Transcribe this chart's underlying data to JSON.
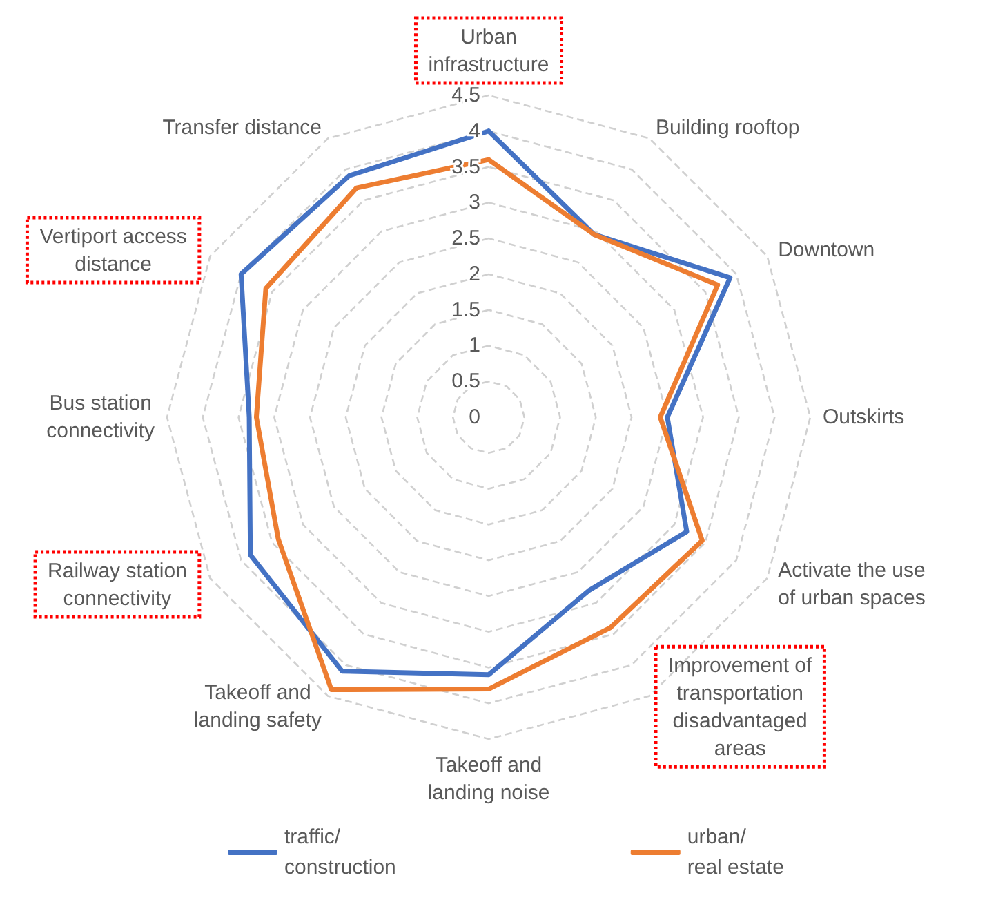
{
  "chart_data": {
    "type": "radar",
    "categories": [
      "Urban infrastructure",
      "Building rooftop",
      "Downtown",
      "Outskirts",
      "Activate the use of urban spaces",
      "Improvement of transportation disadvantaged areas",
      "Takeoff and landing noise",
      "Takeoff and landing safety",
      "Railway station connectivity",
      "Bus station connectivity",
      "Vertiport access distance",
      "Transfer distance"
    ],
    "series": [
      {
        "name": "traffic/construction",
        "color": "#4472c4",
        "values": [
          4.0,
          2.95,
          3.9,
          2.5,
          3.2,
          2.8,
          3.6,
          4.1,
          3.85,
          3.35,
          4.0,
          3.9
        ]
      },
      {
        "name": "urban/real estate",
        "color": "#ed7d31",
        "values": [
          3.6,
          2.95,
          3.7,
          2.4,
          3.45,
          3.4,
          3.8,
          4.4,
          3.4,
          3.25,
          3.6,
          3.7
        ]
      }
    ],
    "ylim": [
      0,
      4.5
    ],
    "yticks": [
      0,
      0.5,
      1,
      1.5,
      2,
      2.5,
      3,
      3.5,
      4,
      4.5
    ],
    "grid": true,
    "legend": "bottom",
    "marker": "none",
    "line_style": "solid"
  }
}
